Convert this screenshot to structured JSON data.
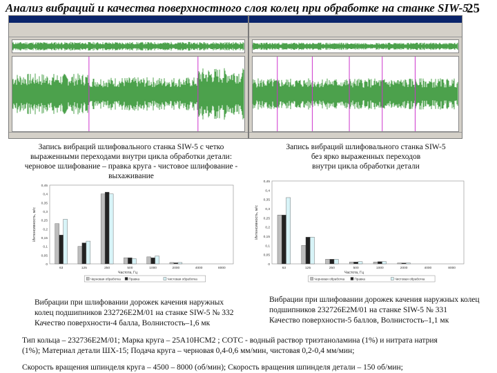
{
  "title": "Анализ вибраций и качества поверхностного слоя колец при обработке на станке SIW-5",
  "page_number": "25",
  "screens": {
    "left_caption": [
      "Запись вибраций шлифовального станка SIW-5 с четко",
      "выраженными переходами внутри цикла обработки детали:",
      "черновое шлифование – правка круга - чистовое шлифование -",
      "выхаживание"
    ],
    "right_caption": [
      "Запись вибраций шлифовального станка SIW-5",
      "без ярко выраженных переходов",
      "внутри цикла обработки детали"
    ]
  },
  "colors": {
    "wave": "#1f8a1f",
    "marker": "#cc33cc",
    "grey_bar": "#bdbdbd",
    "black_bar": "#222222",
    "cyan_bar": "#d8f4f8"
  },
  "chart_data": [
    {
      "type": "bar",
      "ylabel": "Интенсивность, м/с",
      "xlabel": "Частота, Гц",
      "categories": [
        "63",
        "125",
        "250",
        "500",
        "1000",
        "2000",
        "4000",
        "8000"
      ],
      "yticks": [
        "0",
        "0,05",
        "0,1",
        "0,15",
        "0,2",
        "0,25",
        "0,3",
        "0,35",
        "0,4",
        "0,45"
      ],
      "ylim": [
        0,
        0.45
      ],
      "series": [
        {
          "name": "Черновая обработка",
          "values": [
            0.23,
            0.1,
            0.4,
            0.035,
            0.04,
            0.008,
            0,
            0
          ]
        },
        {
          "name": "Правка",
          "values": [
            0.165,
            0.12,
            0.41,
            0.035,
            0.035,
            0.006,
            0,
            0
          ]
        },
        {
          "name": "Чистовая обработка",
          "values": [
            0.255,
            0.13,
            0.4,
            0.03,
            0.045,
            0.008,
            0,
            0
          ]
        }
      ],
      "legend": "bottom"
    },
    {
      "type": "bar",
      "ylabel": "Интенсивность, м/с",
      "xlabel": "Частота, Гц",
      "categories": [
        "63",
        "125",
        "250",
        "500",
        "1000",
        "2000",
        "4000",
        "8000"
      ],
      "yticks": [
        "0",
        "0,05",
        "0,1",
        "0,15",
        "0,2",
        "0,25",
        "0,3",
        "0,35",
        "0,4",
        "0,45"
      ],
      "ylim": [
        0,
        0.45
      ],
      "series": [
        {
          "name": "Черновая обработка",
          "values": [
            0.265,
            0.1,
            0.025,
            0.01,
            0.01,
            0.005,
            0,
            0
          ]
        },
        {
          "name": "Правка",
          "values": [
            0.265,
            0.145,
            0.025,
            0.01,
            0.012,
            0.005,
            0,
            0
          ]
        },
        {
          "name": "Чистовая обработка",
          "values": [
            0.36,
            0.145,
            0.025,
            0.012,
            0.012,
            0.005,
            0,
            0
          ]
        }
      ],
      "legend": "bottom"
    }
  ],
  "left_note": [
    "Вибрации при шлифовании дорожек качения наружных",
    "колец подшипников 232726Е2М/01 на станке SIW-5 № 332",
    "Качество поверхности-4 балла, Волнистость–1,6 мк"
  ],
  "right_note": [
    "Вибрации при шлифовании дорожек качения наружных колец",
    "подшипников 232726Е2М/01 на станке SIW-5 № 331",
    "Качество поверхности-5 баллов, Волнистость–1,1 мк"
  ],
  "footer": [
    "Тип кольца – 232736Е2М/01; Марка круга – 25А10НСМ2 ; СОТС - водный раствор триэтаноламина (1%) и нитрата натрия",
    "(1%); Материал детали ШХ-15; Подача круга – черновая 0,4-0,6 мм/мин, чистовая 0,2-0,4 мм/мин;",
    "Скорость вращения шпинделя круга – 4500 – 8000 (об/мин); Скорость вращения шпинделя детали – 150 об/мин;"
  ]
}
